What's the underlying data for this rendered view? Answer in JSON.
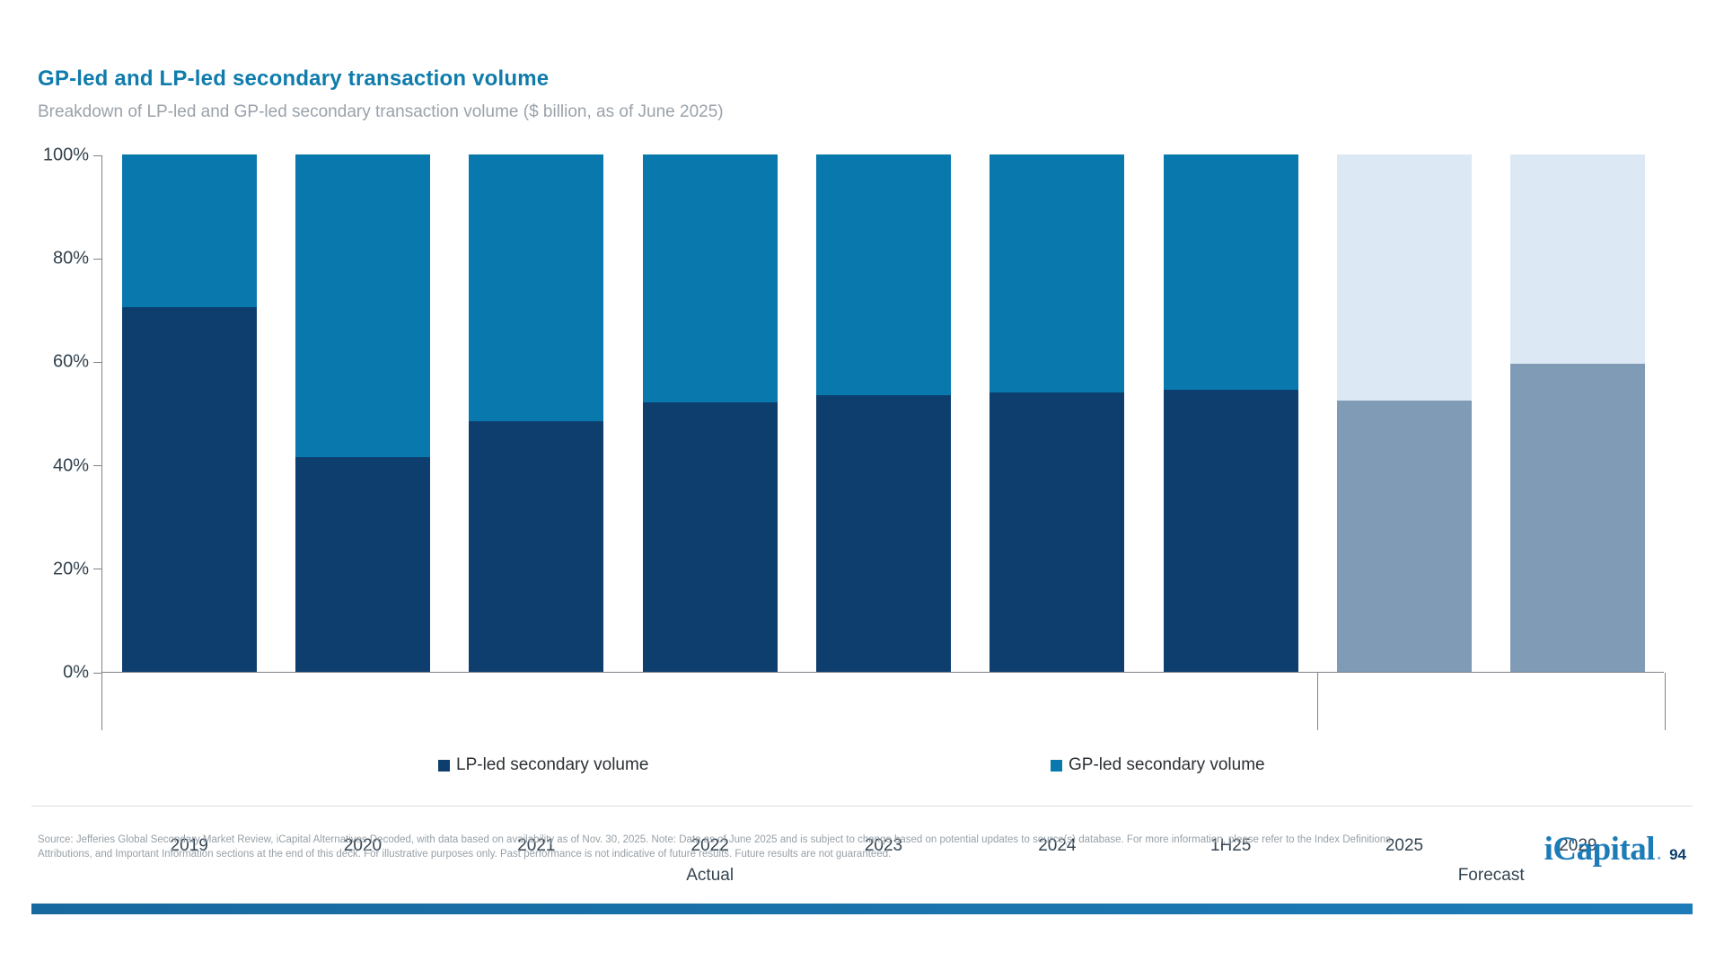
{
  "title": "GP-led and LP-led secondary transaction volume",
  "subtitle": "Breakdown of LP-led and GP-led secondary transaction volume ($ billion, as of June 2025)",
  "colors": {
    "title_accent": "#0f7cac",
    "lp_actual": "#0d3e6e",
    "gp_actual": "#0878ad",
    "lp_forecast": "#7f9bb6",
    "gp_forecast": "#dce8f4",
    "axis": "#7d8287",
    "brand_blue": "#1d7cb8"
  },
  "chart_data": {
    "type": "bar",
    "stacked": true,
    "unit": "%",
    "categories": [
      "2019",
      "2020",
      "2021",
      "2022",
      "2023",
      "2024",
      "1H25",
      "2025",
      "2029"
    ],
    "series": [
      {
        "name": "LP-led secondary volume",
        "values": [
          70.5,
          41.5,
          48.5,
          52,
          53.5,
          54,
          54.5,
          52.5,
          59.5
        ]
      },
      {
        "name": "GP-led secondary volume",
        "values": [
          29.5,
          58.5,
          51.5,
          48,
          46.5,
          46,
          45.5,
          47.5,
          40.5
        ]
      }
    ],
    "forecast_start_index": 7,
    "groups": [
      {
        "label": "Actual",
        "span": 7
      },
      {
        "label": "Forecast",
        "span": 2
      }
    ],
    "ylim": [
      0,
      100
    ],
    "yticks": [
      "0%",
      "20%",
      "40%",
      "60%",
      "80%",
      "100%"
    ],
    "grid": false,
    "legend_position": "bottom"
  },
  "legend": {
    "lp_label": "LP-led secondary volume",
    "gp_label": "GP-led secondary volume"
  },
  "footer": {
    "source_line1": "Source: Jefferies Global Secondary Market Review, iCapital Alternatives Decoded, with data based on availability as of Nov. 30, 2025. Note: Data as of June 2025 and is subject to change based on potential updates to source(s) database. For more information, please refer to the Index Definitions,",
    "source_line2": "Attributions, and Important Information sections at the end of this deck. For illustrative purposes only. Past performance is not indicative of future results. Future results are not guaranteed.",
    "logo_text": "iCapital",
    "logo_dot": ".",
    "page_number": "94"
  }
}
